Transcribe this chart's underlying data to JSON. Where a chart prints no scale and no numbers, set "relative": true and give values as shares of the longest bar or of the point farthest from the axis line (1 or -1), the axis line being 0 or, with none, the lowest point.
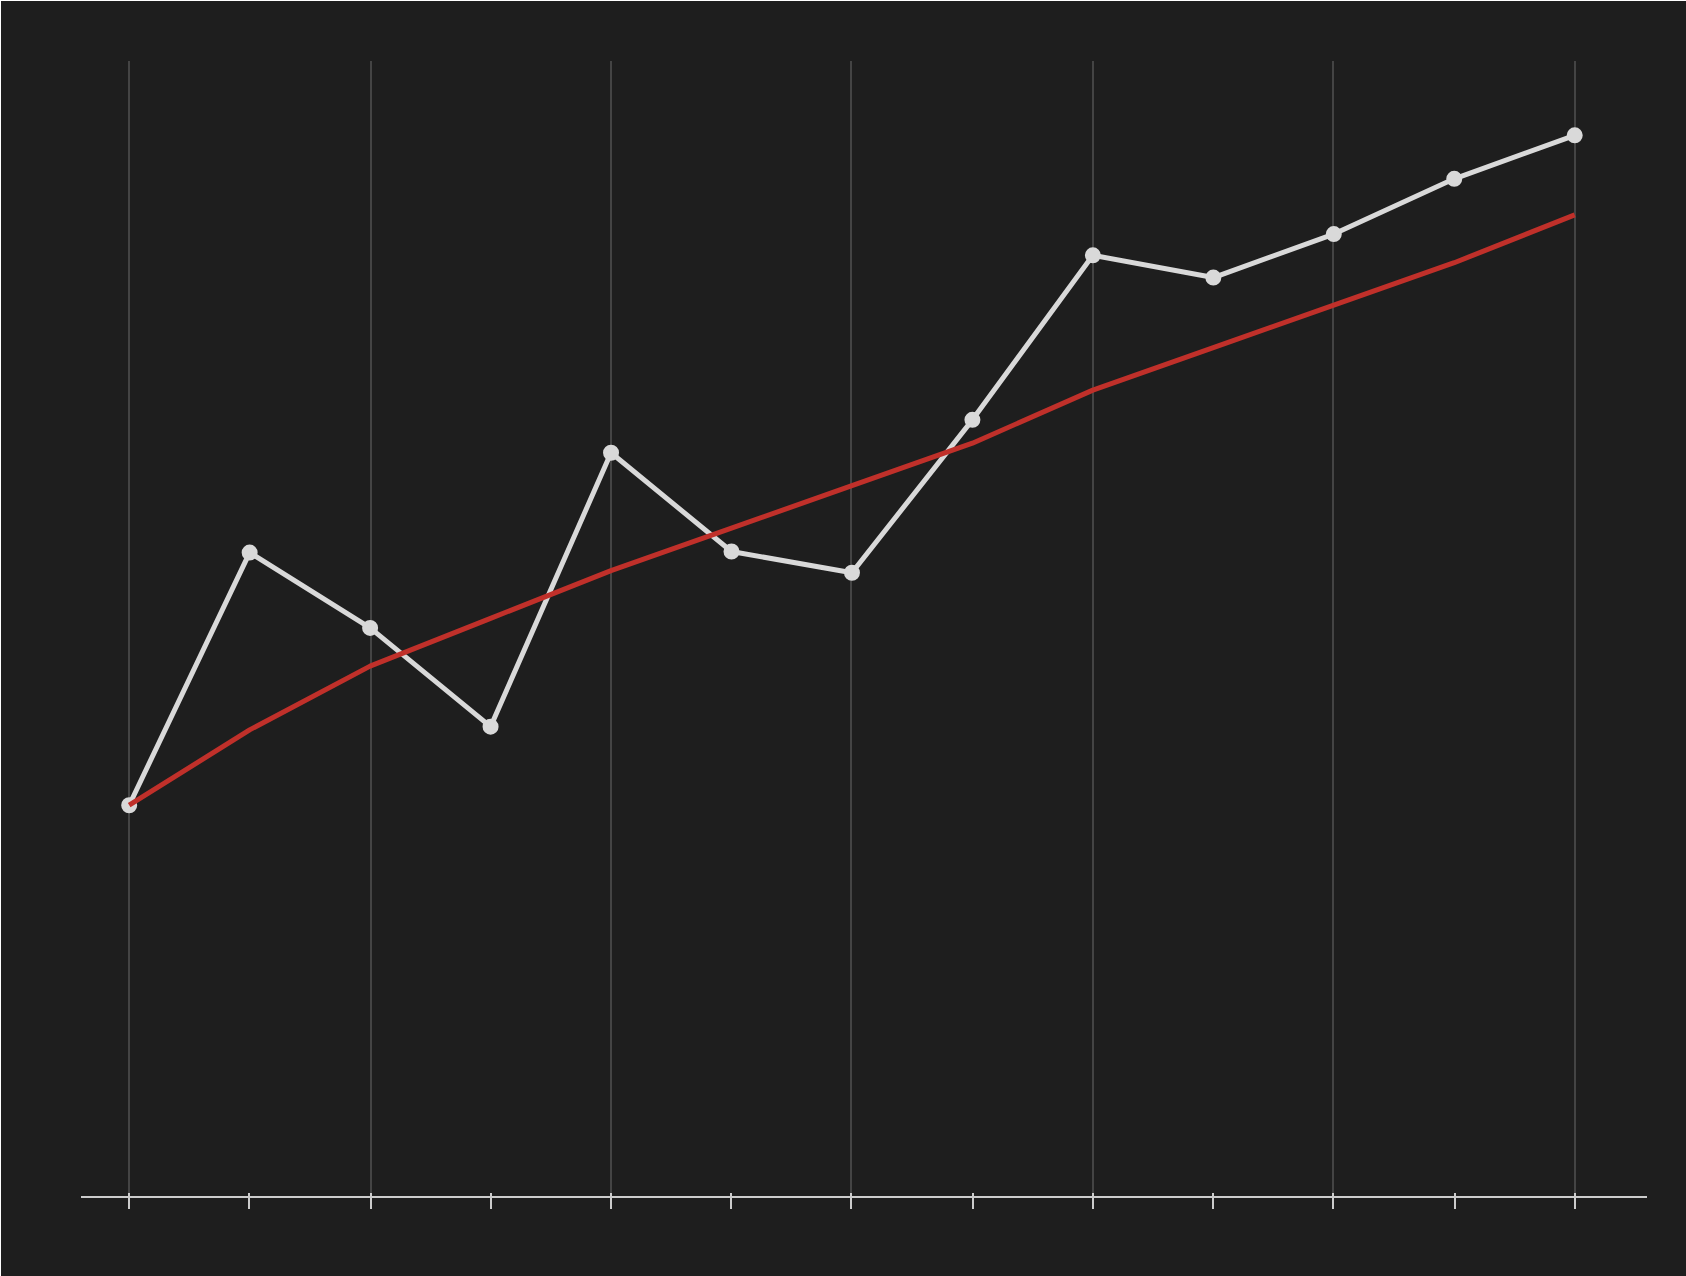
{
  "chart_data": {
    "type": "line",
    "relative": true,
    "grid": "x",
    "categories": [
      null,
      null,
      null,
      null,
      null,
      null,
      null,
      null,
      null,
      null,
      null,
      null,
      null
    ],
    "series": [
      {
        "color": "#d9d9d9",
        "marker": "circle",
        "values": [
          0.369,
          0.607,
          0.536,
          0.443,
          0.701,
          0.608,
          0.588,
          0.732,
          0.887,
          0.866,
          0.907,
          0.959,
          1.0
        ]
      },
      {
        "color": "#c0302a",
        "marker": "none",
        "values": [
          0.369,
          0.44,
          0.5,
          0.545,
          0.59,
          0.63,
          0.67,
          0.71,
          0.76,
          0.8,
          0.84,
          0.88,
          0.925
        ]
      }
    ]
  }
}
